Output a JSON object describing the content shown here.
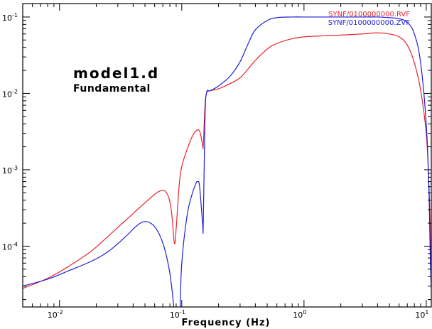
{
  "chart_data": {
    "type": "line",
    "title": "model1.d",
    "subtitle": "Fundamental",
    "xlabel": "Frequency (Hz)",
    "ylabel": "",
    "x_scale": "log",
    "y_scale": "log",
    "xlim": [
      0.005,
      11
    ],
    "ylim": [
      1.6e-05,
      0.15
    ],
    "x_ticks": [
      {
        "base": "10",
        "exp": "-2",
        "value": 0.01
      },
      {
        "base": "10",
        "exp": "-1",
        "value": 0.1
      },
      {
        "base": "10",
        "exp": "0",
        "value": 1
      },
      {
        "base": "10",
        "exp": "1",
        "value": 10
      }
    ],
    "y_ticks": [
      {
        "base": "10",
        "exp": "-4",
        "value": 0.0001
      },
      {
        "base": "10",
        "exp": "-3",
        "value": 0.001
      },
      {
        "base": "10",
        "exp": "-2",
        "value": 0.01
      },
      {
        "base": "10",
        "exp": "-1",
        "value": 0.1
      }
    ],
    "grid": false,
    "legend_position": "top-right",
    "series": [
      {
        "name": "SYNF/0100000000.RVF",
        "color": "#e8252d",
        "x": [
          0.005,
          0.008,
          0.012,
          0.018,
          0.025,
          0.035,
          0.05,
          0.065,
          0.075,
          0.082,
          0.087,
          0.09,
          0.095,
          0.1,
          0.11,
          0.12,
          0.13,
          0.14,
          0.148,
          0.15,
          0.155,
          0.16,
          0.17,
          0.2,
          0.25,
          0.3,
          0.35,
          0.4,
          0.5,
          0.6,
          0.8,
          1,
          1.5,
          2,
          3,
          4,
          5,
          6,
          7,
          8,
          9,
          10,
          10.5,
          10.8,
          11
        ],
        "y": [
          2.8e-05,
          3.8e-05,
          5.5e-05,
          8.5e-05,
          0.000135,
          0.00022,
          0.00037,
          0.00052,
          0.0005,
          0.0003,
          0.00011,
          0.00017,
          0.0006,
          0.0011,
          0.0018,
          0.0026,
          0.0032,
          0.0032,
          0.0021,
          0.0021,
          0.007,
          0.0102,
          0.0108,
          0.0115,
          0.0135,
          0.016,
          0.021,
          0.027,
          0.038,
          0.045,
          0.052,
          0.055,
          0.057,
          0.058,
          0.06,
          0.062,
          0.06,
          0.055,
          0.043,
          0.025,
          0.011,
          0.003,
          0.0007,
          0.00015,
          2.8e-05
        ]
      },
      {
        "name": "SYNF/0100000000.ZVF",
        "color": "#1f1fdc",
        "x": [
          0.005,
          0.008,
          0.012,
          0.018,
          0.025,
          0.035,
          0.042,
          0.05,
          0.06,
          0.07,
          0.078,
          0.083,
          0.086,
          0.087,
          0.095,
          0.097,
          0.1,
          0.11,
          0.12,
          0.13,
          0.135,
          0.14,
          0.148,
          0.15,
          0.155,
          0.16,
          0.17,
          0.2,
          0.25,
          0.3,
          0.35,
          0.4,
          0.5,
          0.6,
          0.8,
          1,
          1.5,
          2,
          3,
          4,
          5,
          6,
          7,
          8,
          9,
          10,
          10.5,
          10.8,
          11
        ],
        "y": [
          3e-05,
          3.7e-05,
          4.8e-05,
          6.3e-05,
          8.5e-05,
          0.000135,
          0.00018,
          0.00021,
          0.00018,
          0.00011,
          5.5e-05,
          2.8e-05,
          1.6e-05,
          1.2e-05,
          1.2e-05,
          1.6e-05,
          6e-05,
          0.00024,
          0.00045,
          0.00065,
          0.0007,
          0.0006,
          0.0002,
          0.0002,
          0.005,
          0.0103,
          0.0108,
          0.0125,
          0.017,
          0.026,
          0.045,
          0.068,
          0.09,
          0.098,
          0.1,
          0.1,
          0.1,
          0.1,
          0.1,
          0.1,
          0.098,
          0.095,
          0.085,
          0.06,
          0.025,
          0.004,
          0.0006,
          7e-05,
          2.8e-05
        ]
      }
    ]
  }
}
